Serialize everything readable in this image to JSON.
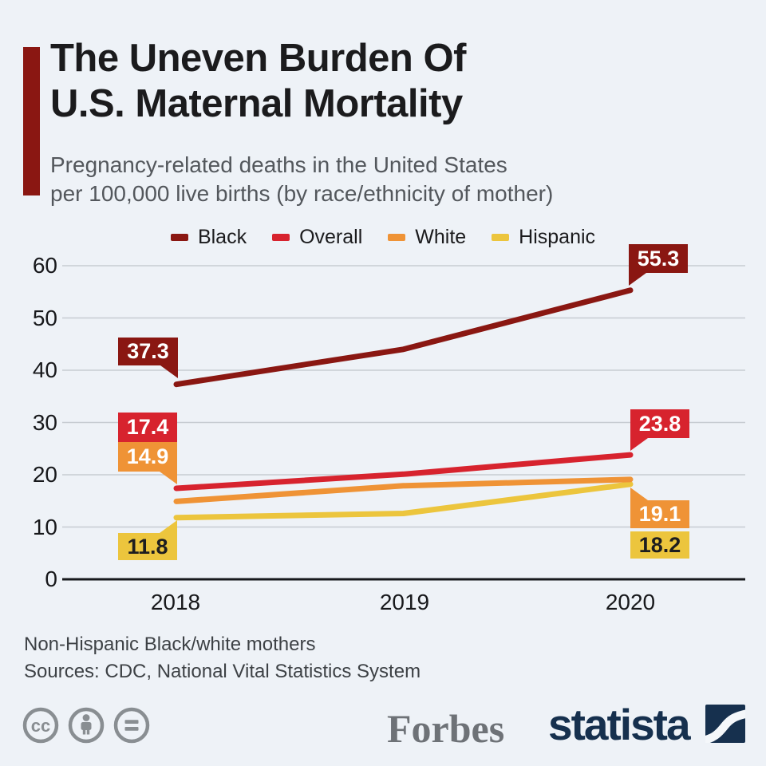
{
  "infographic": {
    "title_line1": "The Uneven Burden Of",
    "title_line2": "U.S. Maternal Mortality",
    "subtitle_line1": "Pregnancy-related deaths in the United States",
    "subtitle_line2": "per 100,000 live births (by race/ethnicity of mother)",
    "note_line1": "Non-Hispanic Black/white mothers",
    "note_line2": "Sources: CDC, National Vital Statistics System",
    "brands": {
      "publisher": "Forbes",
      "provider": "statista"
    },
    "license_icons": [
      "cc-icon",
      "attribution-icon",
      "no-derivatives-icon"
    ],
    "colors": {
      "background": "#eef2f7",
      "accent_bar": "#8a1712",
      "title_text": "#1b1b1d",
      "subtitle_text": "#53575c",
      "grid_line": "#c7ccd2",
      "axis_line": "#17191c",
      "footer_text": "#3d4145",
      "cc_gray": "#898e92",
      "forbes_gray": "#6e7277",
      "statista_navy": "#16304e"
    }
  },
  "chart_data": {
    "type": "line",
    "title": "The Uneven Burden Of U.S. Maternal Mortality",
    "xlabel": "",
    "ylabel": "Pregnancy-related deaths per 100,000 live births",
    "x": [
      2018,
      2019,
      2020
    ],
    "series": [
      {
        "name": "Black",
        "color": "#8a1712",
        "values": [
          37.3,
          44.0,
          55.3
        ]
      },
      {
        "name": "Overall",
        "color": "#d7232e",
        "values": [
          17.4,
          20.1,
          23.8
        ]
      },
      {
        "name": "White",
        "color": "#ef9336",
        "values": [
          14.9,
          17.9,
          19.1
        ]
      },
      {
        "name": "Hispanic",
        "color": "#ecc53d",
        "values": [
          11.8,
          12.6,
          18.2
        ]
      }
    ],
    "yticks": [
      0,
      10,
      20,
      30,
      40,
      50,
      60
    ],
    "ylim": [
      0,
      62
    ],
    "grid": true,
    "legend_position": "top",
    "labeled_points": "Only 2018 and 2020 endpoint values are shown in callout labels; 2019 values estimated from line positions"
  }
}
